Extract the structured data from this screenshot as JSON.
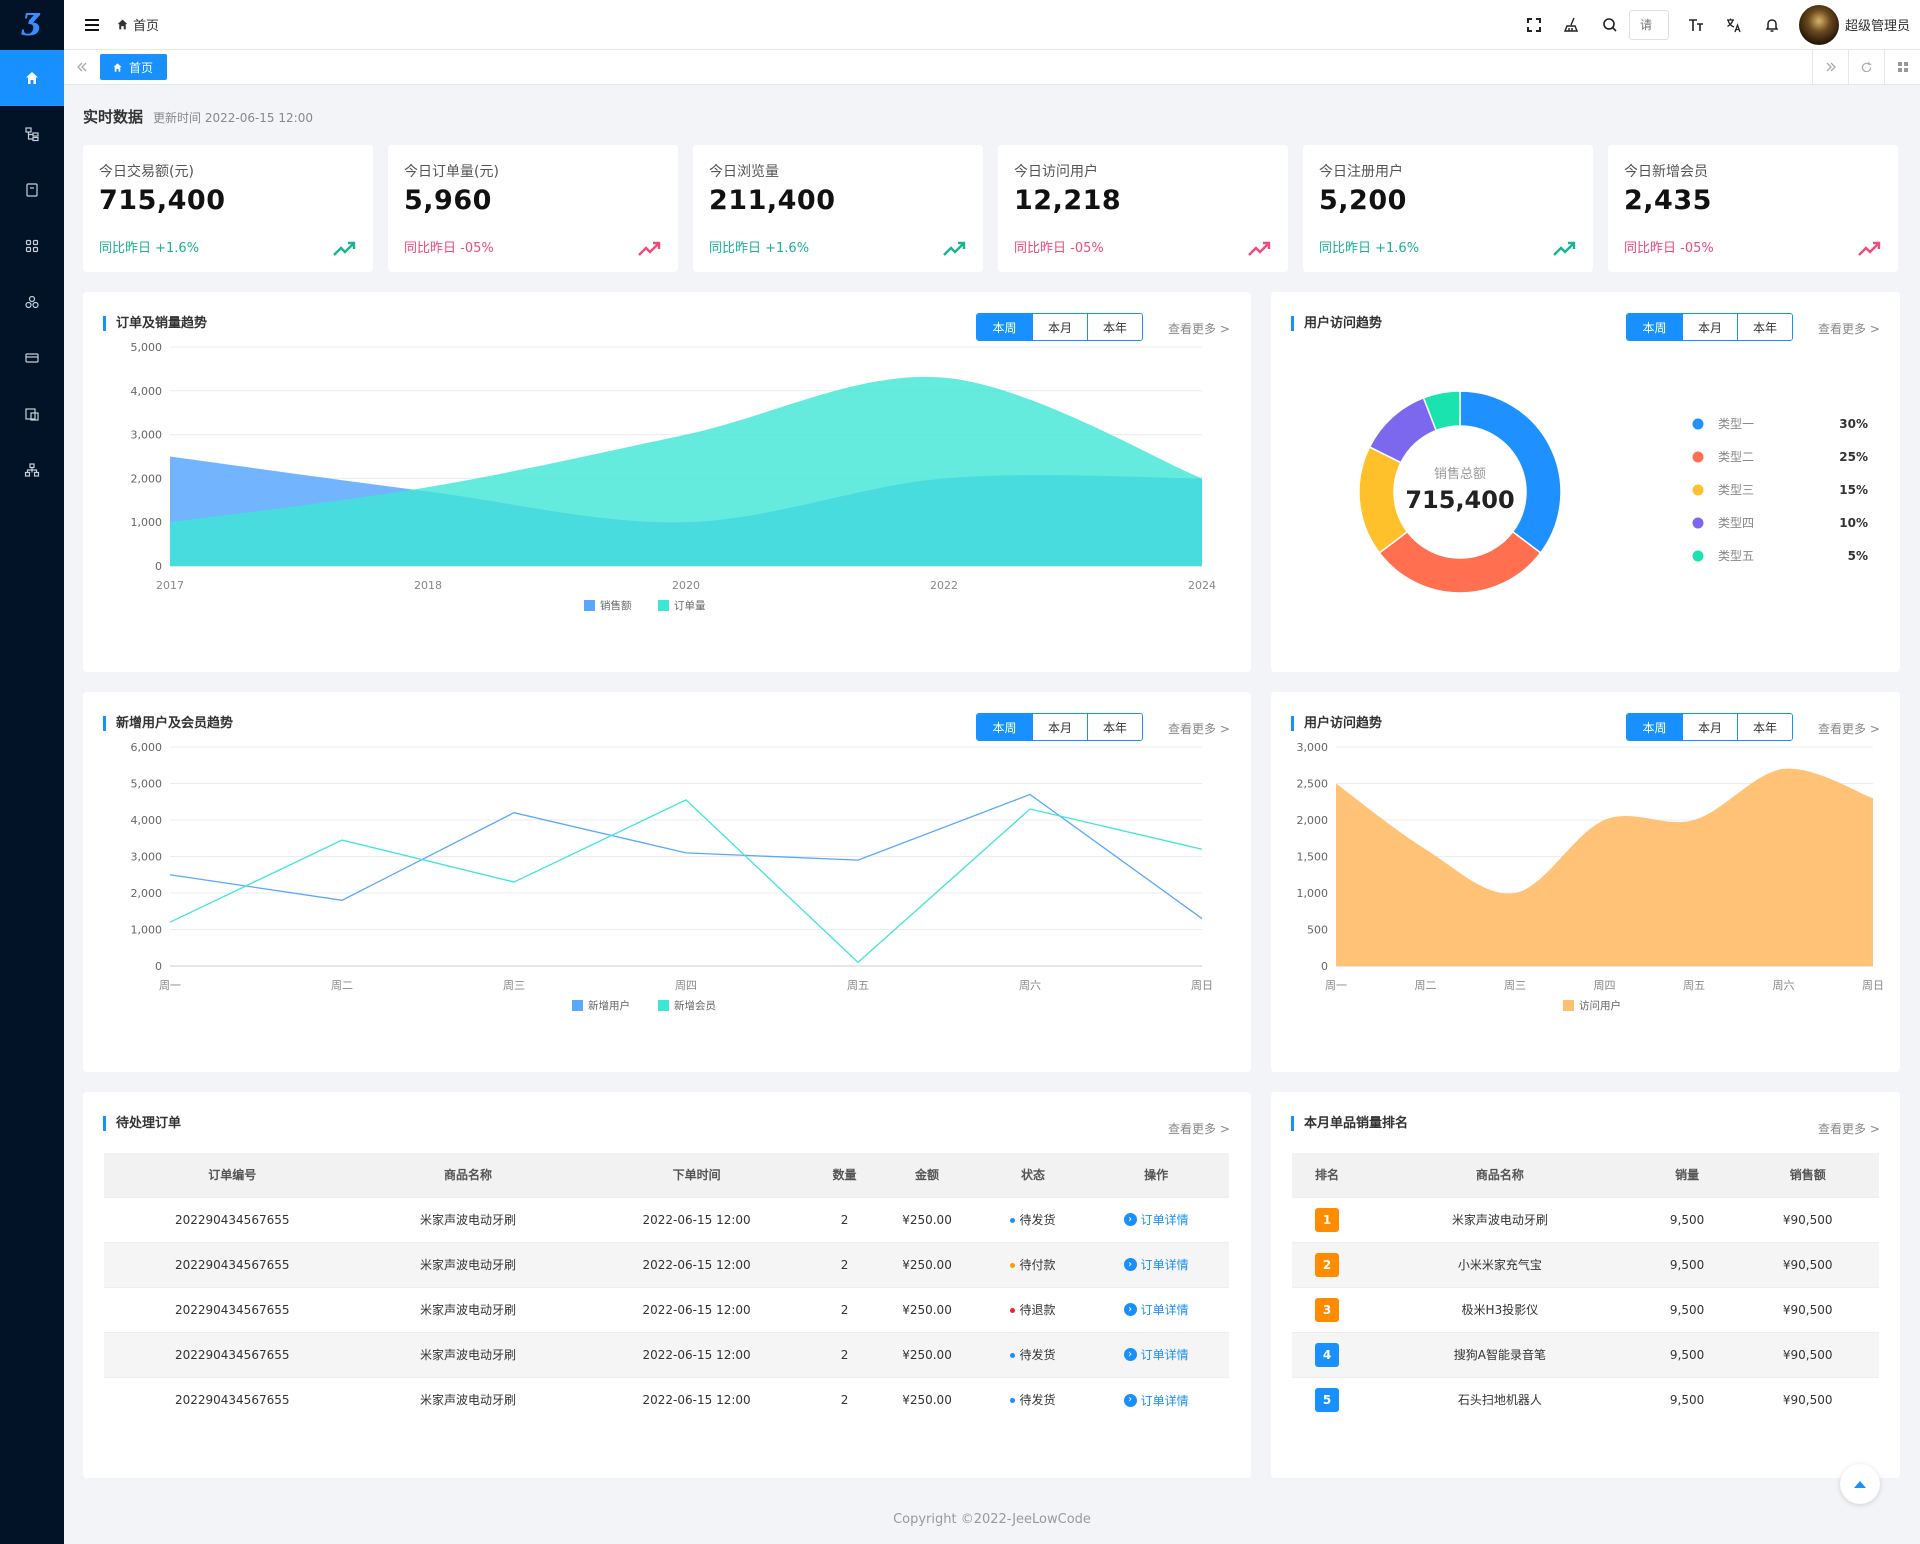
{
  "topbar": {
    "breadcrumb": "首页",
    "search_placeholder": "请",
    "user_name": "超级管理员"
  },
  "tags": {
    "home": "首页"
  },
  "realtime": {
    "title": "实时数据",
    "time": "更新时间 2022-06-15 12:00"
  },
  "stats": [
    {
      "label": "今日交易额(元)",
      "value": "715,400",
      "compare": "同比昨日 +1.6%",
      "trend": "up"
    },
    {
      "label": "今日订单量(元)",
      "value": "5,960",
      "compare": "同比昨日 -05%",
      "trend": "down"
    },
    {
      "label": "今日浏览量",
      "value": "211,400",
      "compare": "同比昨日 +1.6%",
      "trend": "up"
    },
    {
      "label": "今日访问用户",
      "value": "12,218",
      "compare": "同比昨日 -05%",
      "trend": "down"
    },
    {
      "label": "今日注册用户",
      "value": "5,200",
      "compare": "同比昨日 +1.6%",
      "trend": "up"
    },
    {
      "label": "今日新增会员",
      "value": "2,435",
      "compare": "同比昨日 -05%",
      "trend": "down"
    }
  ],
  "common": {
    "period_week": "本周",
    "period_month": "本月",
    "period_year": "本年",
    "see_more": "查看更多 >"
  },
  "panels": {
    "order_trend": "订单及销量趋势",
    "visit_trend_pie": "用户访问趋势",
    "member_trend": "新增用户及会员趋势",
    "visit_trend_area": "用户访问趋势",
    "pending_orders": "待处理订单",
    "ranking": "本月单品销量排名"
  },
  "pie_center": {
    "label": "销售总额",
    "value": "715,400"
  },
  "chart_data": [
    {
      "id": "order_trend",
      "type": "area",
      "title": "订单及销量趋势",
      "x": [
        "2017",
        "2018",
        "2020",
        "2022",
        "2024"
      ],
      "ylim": [
        0,
        5000
      ],
      "yticks": [
        "0",
        "1,000",
        "2,000",
        "3,000",
        "4,000",
        "5,000"
      ],
      "series": [
        {
          "name": "销售额",
          "color": "#5aa7ff",
          "values": [
            2500,
            1700,
            1000,
            2000,
            2000
          ]
        },
        {
          "name": "订单量",
          "color": "#3ee6d6",
          "values": [
            1000,
            1800,
            3000,
            4300,
            2000
          ]
        }
      ]
    },
    {
      "id": "visit_pie",
      "type": "pie",
      "title": "用户访问趋势",
      "series": [
        {
          "name": "类型一",
          "value": 30,
          "label": "30%",
          "color": "#1e90ff"
        },
        {
          "name": "类型二",
          "value": 25,
          "label": "25%",
          "color": "#ff6f50"
        },
        {
          "name": "类型三",
          "value": 15,
          "label": "15%",
          "color": "#ffc12b"
        },
        {
          "name": "类型四",
          "value": 10,
          "label": "10%",
          "color": "#7b68ee"
        },
        {
          "name": "类型五",
          "value": 5,
          "label": "5%",
          "color": "#1ae3b0"
        }
      ]
    },
    {
      "id": "member_trend",
      "type": "line",
      "title": "新增用户及会员趋势",
      "x": [
        "周一",
        "周二",
        "周三",
        "周四",
        "周五",
        "周六",
        "周日"
      ],
      "ylim": [
        0,
        6000
      ],
      "yticks": [
        "0",
        "1,000",
        "2,000",
        "3,000",
        "4,000",
        "5,000",
        "6,000"
      ],
      "series": [
        {
          "name": "新增用户",
          "color": "#5aa7ff",
          "values": [
            2500,
            1800,
            4200,
            3100,
            2900,
            4700,
            1300
          ]
        },
        {
          "name": "新增会员",
          "color": "#3ee6d6",
          "values": [
            1200,
            3450,
            2300,
            4550,
            100,
            4300,
            3200
          ]
        }
      ]
    },
    {
      "id": "visit_area",
      "type": "area",
      "title": "用户访问趋势",
      "x": [
        "周一",
        "周二",
        "周三",
        "周四",
        "周五",
        "周六",
        "周日"
      ],
      "ylim": [
        0,
        3000
      ],
      "yticks": [
        "0",
        "500",
        "1,000",
        "1,500",
        "2,000",
        "2,500",
        "3,000"
      ],
      "series": [
        {
          "name": "访问用户",
          "color": "#ffbf70",
          "values": [
            2500,
            1600,
            1000,
            2000,
            2000,
            2700,
            2300
          ]
        }
      ]
    }
  ],
  "orders": {
    "headers": [
      "订单编号",
      "商品名称",
      "下单时间",
      "数量",
      "金额",
      "状态",
      "操作"
    ],
    "rows": [
      {
        "id": "202290434567655",
        "name": "米家声波电动牙刷",
        "time": "2022-06-15 12:00",
        "qty": "2",
        "amount": "¥250.00",
        "status": "待发货",
        "status_color": "#1890ff",
        "op": "订单详情"
      },
      {
        "id": "202290434567655",
        "name": "米家声波电动牙刷",
        "time": "2022-06-15 12:00",
        "qty": "2",
        "amount": "¥250.00",
        "status": "待付款",
        "status_color": "#ff9a00",
        "op": "订单详情"
      },
      {
        "id": "202290434567655",
        "name": "米家声波电动牙刷",
        "time": "2022-06-15 12:00",
        "qty": "2",
        "amount": "¥250.00",
        "status": "待退款",
        "status_color": "#f5222d",
        "op": "订单详情"
      },
      {
        "id": "202290434567655",
        "name": "米家声波电动牙刷",
        "time": "2022-06-15 12:00",
        "qty": "2",
        "amount": "¥250.00",
        "status": "待发货",
        "status_color": "#1890ff",
        "op": "订单详情"
      },
      {
        "id": "202290434567655",
        "name": "米家声波电动牙刷",
        "time": "2022-06-15 12:00",
        "qty": "2",
        "amount": "¥250.00",
        "status": "待发货",
        "status_color": "#1890ff",
        "op": "订单详情"
      }
    ]
  },
  "ranking": {
    "headers": [
      "排名",
      "商品名称",
      "销量",
      "销售额"
    ],
    "rows": [
      {
        "rank": "1",
        "color": "#ff8c00",
        "name": "米家声波电动牙刷",
        "sales": "9,500",
        "amount": "¥90,500"
      },
      {
        "rank": "2",
        "color": "#ff8c00",
        "name": "小米米家充气宝",
        "sales": "9,500",
        "amount": "¥90,500"
      },
      {
        "rank": "3",
        "color": "#ff8c00",
        "name": "极米H3投影仪",
        "sales": "9,500",
        "amount": "¥90,500"
      },
      {
        "rank": "4",
        "color": "#1890ff",
        "name": "搜狗A智能录音笔",
        "sales": "9,500",
        "amount": "¥90,500"
      },
      {
        "rank": "5",
        "color": "#1890ff",
        "name": "石头扫地机器人",
        "sales": "9,500",
        "amount": "¥90,500"
      }
    ]
  },
  "footer": "Copyright ©2022-JeeLowCode"
}
